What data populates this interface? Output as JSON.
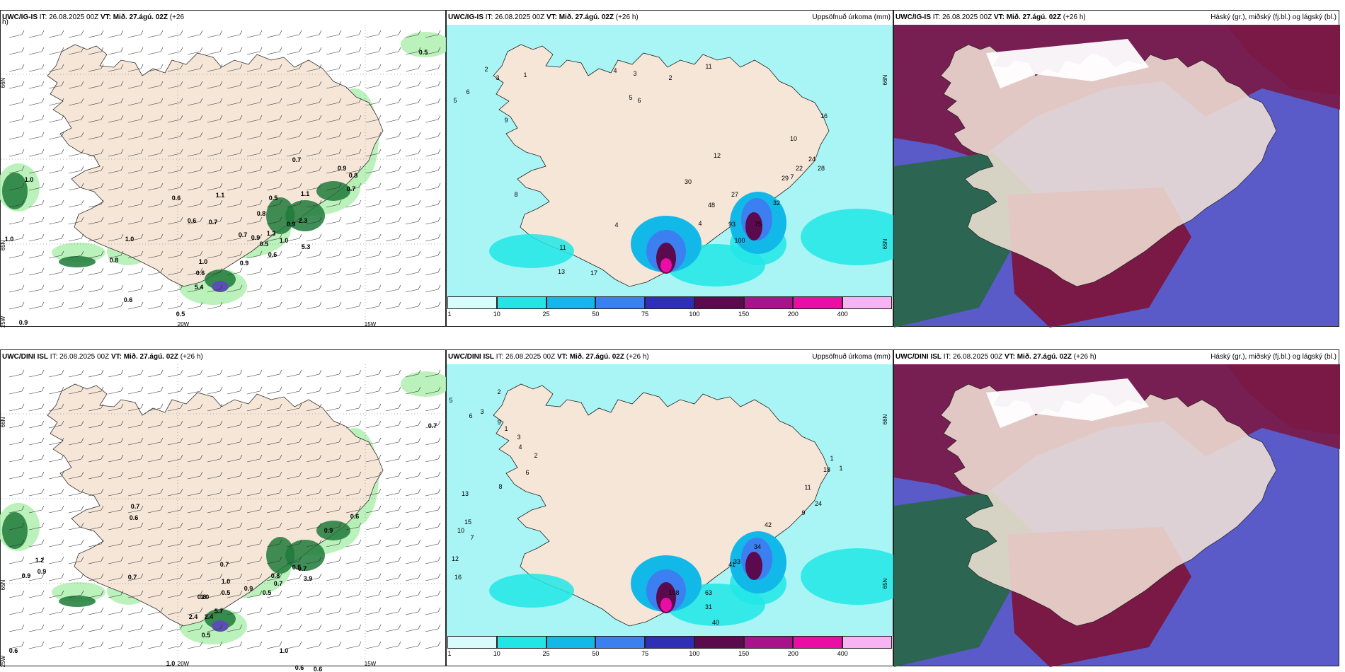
{
  "panels": [
    {
      "id": "p1",
      "kind": "wind",
      "title_model": "UWC/IG-IS",
      "title_it": "IT: 26.08.2025 00Z",
      "title_vt": "VT: Mið. 27.ágú. 02Z",
      "title_lead": "(+26",
      "title_lead2": "h)",
      "right": "",
      "labels": [
        {
          "t": "0.5"
        },
        {
          "t": "1.0"
        },
        {
          "t": "1.0"
        },
        {
          "t": "1.0"
        },
        {
          "t": "0.8"
        },
        {
          "t": "0.6"
        },
        {
          "t": "0.9"
        },
        {
          "t": "0.5"
        },
        {
          "t": "0.6"
        },
        {
          "t": "0.7"
        },
        {
          "t": "0.6"
        },
        {
          "t": "0.7"
        },
        {
          "t": "1.1"
        },
        {
          "t": "0.5"
        },
        {
          "t": "1.1"
        },
        {
          "t": "0.8"
        },
        {
          "t": "1.3"
        },
        {
          "t": "2.3"
        },
        {
          "t": "5.3"
        },
        {
          "t": "0.7"
        },
        {
          "t": "0.9"
        },
        {
          "t": "1.0"
        },
        {
          "t": "0.9"
        },
        {
          "t": "0.7"
        },
        {
          "t": "0.9"
        },
        {
          "t": "5.4"
        },
        {
          "t": "1.0"
        },
        {
          "t": "0.6"
        },
        {
          "t": "0.6"
        },
        {
          "t": "0.5"
        },
        {
          "t": "0.8"
        },
        {
          "t": "0.9"
        }
      ],
      "axes": [
        "66N",
        "65N",
        "25W",
        "20W",
        "15W"
      ]
    },
    {
      "id": "p2",
      "kind": "precip",
      "title_model": "UWC/IG-IS",
      "title_it": "IT: 26.08.2025 00Z",
      "title_vt": "VT: Mið. 27.ágú. 02Z",
      "title_lead": "(+26 h)",
      "title_lead2": "",
      "right": "Uppsöfnuð úrkoma (mm)",
      "labels": [
        {
          "t": "2"
        },
        {
          "t": "3"
        },
        {
          "t": "6"
        },
        {
          "t": "5"
        },
        {
          "t": "9"
        },
        {
          "t": "1"
        },
        {
          "t": "3"
        },
        {
          "t": "4"
        },
        {
          "t": "2"
        },
        {
          "t": "5"
        },
        {
          "t": "11"
        },
        {
          "t": "8"
        },
        {
          "t": "6"
        },
        {
          "t": "12"
        },
        {
          "t": "30"
        },
        {
          "t": "48"
        },
        {
          "t": "27"
        },
        {
          "t": "93"
        },
        {
          "t": "100"
        },
        {
          "t": "75"
        },
        {
          "t": "32"
        },
        {
          "t": "29"
        },
        {
          "t": "22"
        },
        {
          "t": "24"
        },
        {
          "t": "28"
        },
        {
          "t": "16"
        },
        {
          "t": "11"
        },
        {
          "t": "13"
        },
        {
          "t": "17"
        },
        {
          "t": "4"
        },
        {
          "t": "4"
        },
        {
          "t": "7"
        },
        {
          "t": "10"
        }
      ],
      "axes": [
        "66N",
        "65N"
      ]
    },
    {
      "id": "p3",
      "kind": "cloud",
      "title_model": "UWC/IG-IS",
      "title_it": "IT: 26.08.2025 00Z",
      "title_vt": "VT: Mið. 27.ágú. 02Z",
      "title_lead": "(+26 h)",
      "title_lead2": "",
      "right": "Háský (gr.), miðský (fj.bl.) og lágský (bl.)",
      "labels": [],
      "axes": []
    },
    {
      "id": "p4",
      "kind": "wind",
      "title_model": "UWC/DINI ISL",
      "title_it": "IT: 26.08.2025 00Z",
      "title_vt": "VT: Mið. 27.ágú. 02Z",
      "title_lead": "(+26 h)",
      "title_lead2": "",
      "right": "",
      "labels": [
        {
          "t": "0.7"
        },
        {
          "t": "1.2"
        },
        {
          "t": "0.9"
        },
        {
          "t": "0.9"
        },
        {
          "t": "0.7"
        },
        {
          "t": "0.6"
        },
        {
          "t": "0.6"
        },
        {
          "t": "0.9"
        },
        {
          "t": "0.7"
        },
        {
          "t": "1.0"
        },
        {
          "t": "0.5"
        },
        {
          "t": "0.8"
        },
        {
          "t": "1.0"
        },
        {
          "t": "2.4"
        },
        {
          "t": "5.7"
        },
        {
          "t": "2.4"
        },
        {
          "t": "1.0"
        },
        {
          "t": "0.5"
        },
        {
          "t": "0.9"
        },
        {
          "t": "0.7"
        },
        {
          "t": "3.9"
        },
        {
          "t": "0.5"
        },
        {
          "t": "0.8"
        },
        {
          "t": "0.7"
        },
        {
          "t": "0.6"
        },
        {
          "t": "0.6"
        },
        {
          "t": "0.6"
        },
        {
          "t": "0.7"
        },
        {
          "t": "1.0"
        },
        {
          "t": "0.5"
        }
      ],
      "axes": [
        "66N",
        "65N",
        "25W",
        "20W",
        "15W"
      ]
    },
    {
      "id": "p5",
      "kind": "precip",
      "title_model": "UWC/DINI ISL",
      "title_it": "IT: 26.08.2025 00Z",
      "title_vt": "VT: Mið. 27.ágú. 02Z",
      "title_lead": "(+26 h)",
      "title_lead2": "",
      "right": "Uppsöfnuð úrkoma (mm)",
      "labels": [
        {
          "t": "2"
        },
        {
          "t": "3"
        },
        {
          "t": "5"
        },
        {
          "t": "6"
        },
        {
          "t": "9"
        },
        {
          "t": "1"
        },
        {
          "t": "3"
        },
        {
          "t": "4"
        },
        {
          "t": "2"
        },
        {
          "t": "6"
        },
        {
          "t": "8"
        },
        {
          "t": "13"
        },
        {
          "t": "15"
        },
        {
          "t": "10"
        },
        {
          "t": "7"
        },
        {
          "t": "12"
        },
        {
          "t": "16"
        },
        {
          "t": "63"
        },
        {
          "t": "108"
        },
        {
          "t": "31"
        },
        {
          "t": "40"
        },
        {
          "t": "41"
        },
        {
          "t": "33"
        },
        {
          "t": "34"
        },
        {
          "t": "42"
        },
        {
          "t": "18"
        },
        {
          "t": "11"
        },
        {
          "t": "24"
        },
        {
          "t": "9"
        },
        {
          "t": "1"
        },
        {
          "t": "1"
        }
      ],
      "axes": [
        "66N",
        "65N"
      ]
    },
    {
      "id": "p6",
      "kind": "cloud",
      "title_model": "UWC/DINI ISL",
      "title_it": "IT: 26.08.2025 00Z",
      "title_vt": "VT: Mið. 27.ágú. 02Z",
      "title_lead": "(+26 h)",
      "title_lead2": "",
      "right": "Háský (gr.), miðský (fj.bl.) og lágský (bl.)",
      "labels": [],
      "axes": []
    }
  ],
  "colorbar": {
    "ticks": [
      "1",
      "10",
      "25",
      "50",
      "75",
      "100",
      "150",
      "200",
      "400"
    ],
    "colors": [
      "#d8fbfb",
      "#22e6e6",
      "#12b8e8",
      "#3c7ff0",
      "#2e2fb6",
      "#5c0a4e",
      "#a8138b",
      "#ea0ea4",
      "#f6b4f4"
    ]
  },
  "colors": {
    "land": "#f5e6d8",
    "precip_light": "#a9f5f5",
    "green_light": "#b4f0b4",
    "green_dark": "#1f7a3a",
    "cloud_high": "#2c6653",
    "cloud_mid": "#7a1846",
    "cloud_low": "#5a5bc8"
  }
}
